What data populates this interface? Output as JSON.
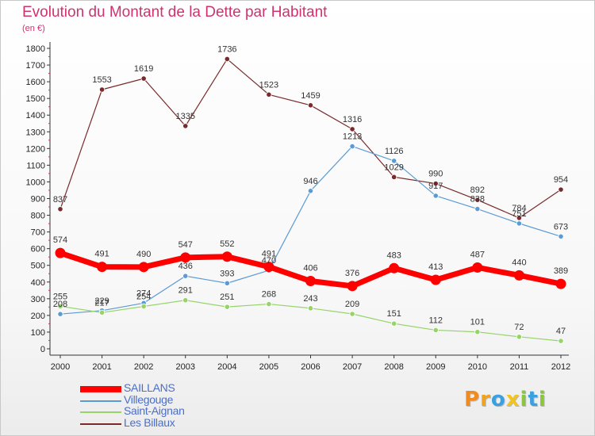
{
  "header": {
    "title": "Evolution du Montant de la Dette par Habitant",
    "unit": "(en €)"
  },
  "brand": {
    "text": "Proxiti",
    "letters": [
      "P",
      "r",
      "o",
      "x",
      "i",
      "t",
      "i"
    ],
    "colors": [
      "#f28a1e",
      "#f2a21e",
      "#3aa0e0",
      "#f2c51e",
      "#8cc63f",
      "#3aa0e0",
      "#8cc63f"
    ]
  },
  "chart_data": {
    "type": "line",
    "title": "Evolution du Montant de la Dette par Habitant",
    "ylabel": "(en €)",
    "xlabel": "",
    "x": [
      "2000",
      "2001",
      "2002",
      "2003",
      "2004",
      "2005",
      "2006",
      "2007",
      "2008",
      "2009",
      "2010",
      "2011",
      "2012"
    ],
    "ylim": [
      0,
      1800
    ],
    "yticks": [
      0,
      100,
      200,
      300,
      400,
      500,
      600,
      700,
      800,
      900,
      1000,
      1100,
      1200,
      1300,
      1400,
      1500,
      1600,
      1700,
      1800
    ],
    "grid": false,
    "legend": "bottom-left",
    "series": [
      {
        "name": "Les Billaux",
        "color": "#7a2a2a",
        "width": 1.2,
        "values": [
          837,
          1553,
          1619,
          1335,
          1736,
          1523,
          1459,
          1316,
          1029,
          990,
          892,
          784,
          954
        ]
      },
      {
        "name": "Villegouge",
        "color": "#5b9bd5",
        "width": 1.2,
        "values": [
          208,
          229,
          274,
          436,
          393,
          470,
          946,
          1213,
          1126,
          917,
          838,
          751,
          673
        ]
      },
      {
        "name": "Saint-Aignan",
        "color": "#96d46a",
        "width": 1.2,
        "values": [
          255,
          217,
          254,
          291,
          251,
          268,
          243,
          209,
          151,
          112,
          101,
          72,
          47
        ]
      },
      {
        "name": "SAILLANS",
        "color": "#ff0000",
        "width": 7,
        "values": [
          574,
          491,
          490,
          547,
          552,
          491,
          406,
          376,
          483,
          413,
          487,
          440,
          389
        ]
      }
    ],
    "labels": [
      {
        "x": "2000",
        "text": "837"
      },
      {
        "x": "2001",
        "text": "1553"
      },
      {
        "x": "2002",
        "text": "1619"
      },
      {
        "x": "2003",
        "text": "1335"
      },
      {
        "x": "2004",
        "text": "1736"
      },
      {
        "x": "2005",
        "text": "1523"
      },
      {
        "x": "2006",
        "text": "1459"
      },
      {
        "x": "2007",
        "text": "1316"
      },
      {
        "x": "2008",
        "text": "1029"
      },
      {
        "x": "2009",
        "text": "990"
      },
      {
        "x": "2010",
        "text": "892"
      },
      {
        "x": "2011",
        "text": "784"
      },
      {
        "x": "2012",
        "text": "954"
      },
      {
        "x": "2000",
        "text": "208"
      },
      {
        "x": "2001",
        "text": "229"
      },
      {
        "x": "2002",
        "text": "274"
      },
      {
        "x": "2003",
        "text": "436"
      },
      {
        "x": "2004",
        "text": "393"
      },
      {
        "x": "2005",
        "text": "470"
      },
      {
        "x": "2006",
        "text": "946"
      },
      {
        "x": "2007",
        "text": "1213"
      },
      {
        "x": "2008",
        "text": "1126"
      },
      {
        "x": "2009",
        "text": "917"
      },
      {
        "x": "2010",
        "text": "838"
      },
      {
        "x": "2011",
        "text": "751"
      },
      {
        "x": "2012",
        "text": "673"
      },
      {
        "x": "2000",
        "text": "255"
      },
      {
        "x": "2001",
        "text": "217"
      },
      {
        "x": "2002",
        "text": "254"
      },
      {
        "x": "2003",
        "text": "291"
      },
      {
        "x": "2004",
        "text": "251"
      },
      {
        "x": "2005",
        "text": "268"
      },
      {
        "x": "2006",
        "text": "243"
      },
      {
        "x": "2007",
        "text": "209"
      },
      {
        "x": "2008",
        "text": "151"
      },
      {
        "x": "2009",
        "text": "112"
      },
      {
        "x": "2010",
        "text": "101"
      },
      {
        "x": "2011",
        "text": "72"
      },
      {
        "x": "2012",
        "text": "47"
      },
      {
        "x": "2000",
        "text": "574"
      },
      {
        "x": "2001",
        "text": "491"
      },
      {
        "x": "2002",
        "text": "490"
      },
      {
        "x": "2003",
        "text": "547"
      },
      {
        "x": "2004",
        "text": "552"
      },
      {
        "x": "2005",
        "text": "491"
      },
      {
        "x": "2006",
        "text": "406"
      },
      {
        "x": "2007",
        "text": "376"
      },
      {
        "x": "2008",
        "text": "483"
      },
      {
        "x": "2009",
        "text": "413"
      },
      {
        "x": "2010",
        "text": "487"
      },
      {
        "x": "2011",
        "text": "440"
      },
      {
        "x": "2012",
        "text": "389"
      }
    ],
    "legend_entries": [
      {
        "name": "SAILLANS",
        "color": "#ff0000",
        "thick": true
      },
      {
        "name": "Villegouge",
        "color": "#5b9bd5",
        "thick": false
      },
      {
        "name": "Saint-Aignan",
        "color": "#96d46a",
        "thick": false
      },
      {
        "name": "Les Billaux",
        "color": "#7a2a2a",
        "thick": false
      }
    ]
  }
}
